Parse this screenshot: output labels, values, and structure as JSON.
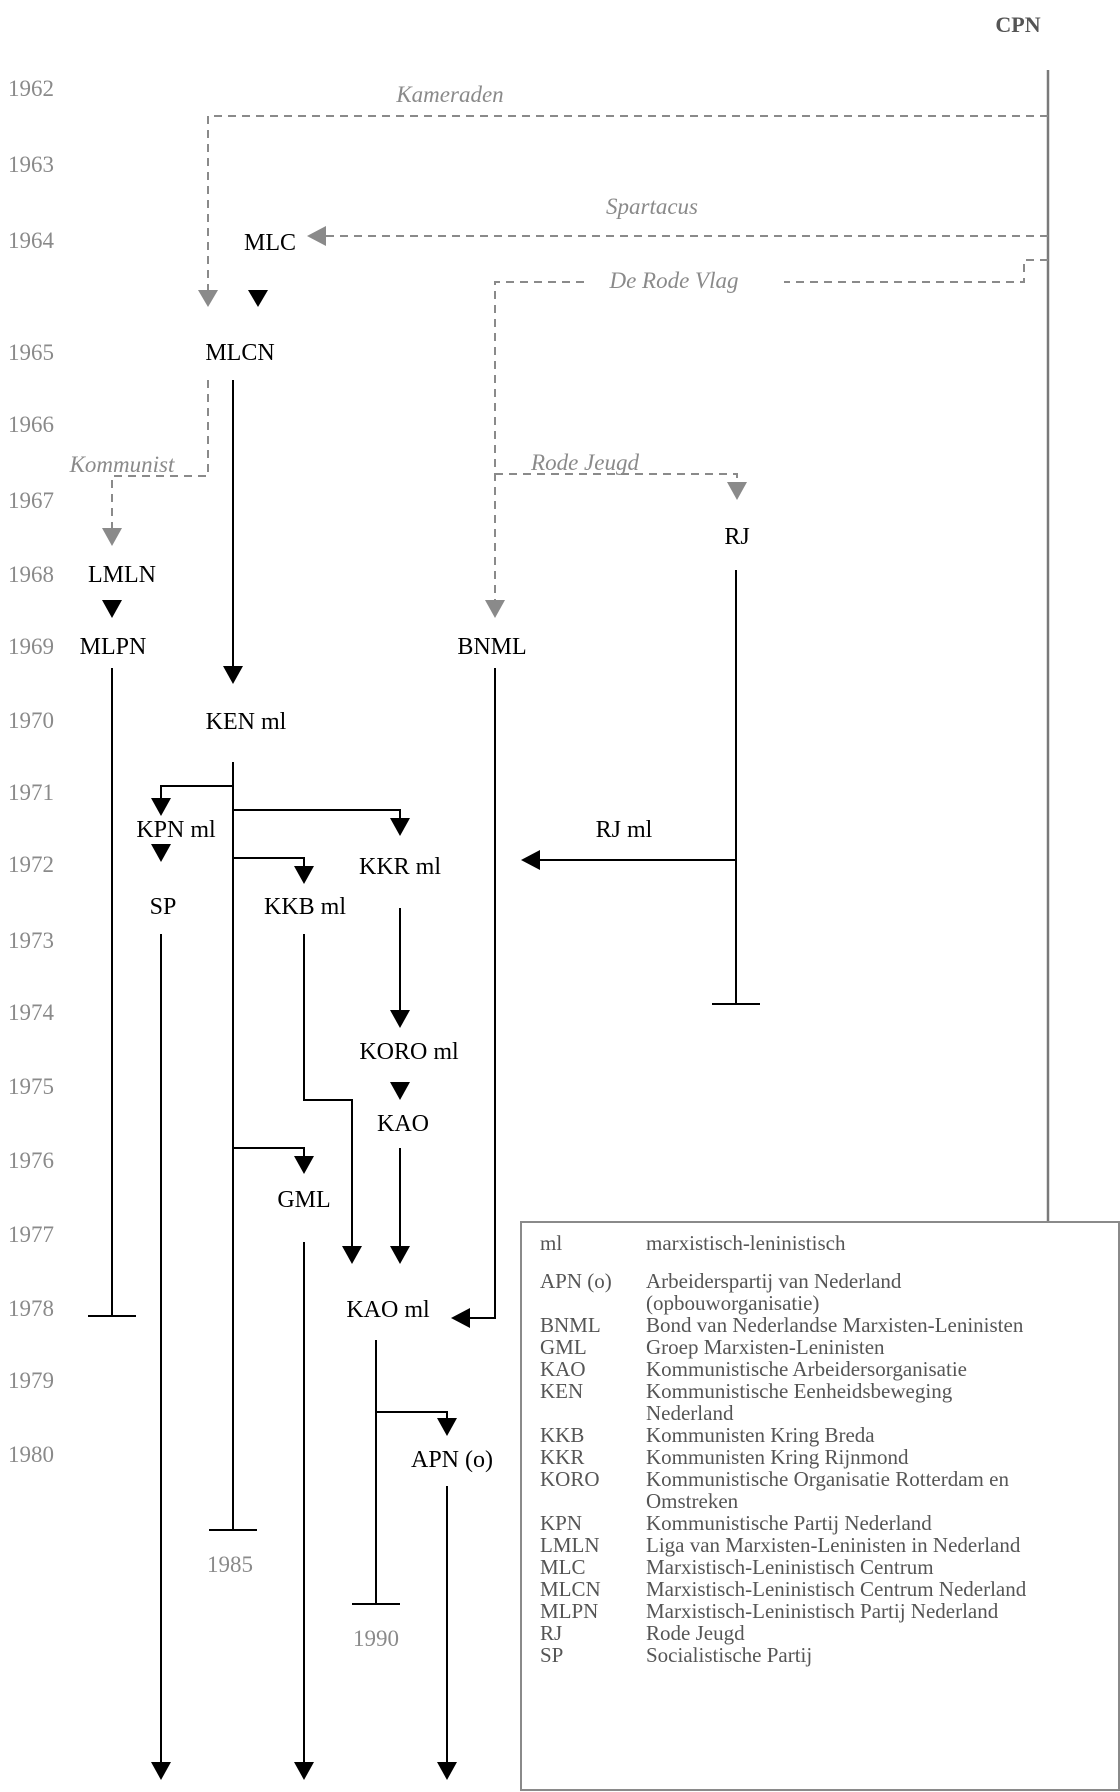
{
  "origin": "CPN",
  "years": [
    {
      "label": "1962"
    },
    {
      "label": "1963"
    },
    {
      "label": "1964"
    },
    {
      "label": "1965"
    },
    {
      "label": "1966"
    },
    {
      "label": "1967"
    },
    {
      "label": "1968"
    },
    {
      "label": "1969"
    },
    {
      "label": "1970"
    },
    {
      "label": "1971"
    },
    {
      "label": "1972"
    },
    {
      "label": "1973"
    },
    {
      "label": "1974"
    },
    {
      "label": "1975"
    },
    {
      "label": "1976"
    },
    {
      "label": "1977"
    },
    {
      "label": "1978"
    },
    {
      "label": "1979"
    },
    {
      "label": "1980"
    }
  ],
  "publications": {
    "kameraden": "Kameraden",
    "spartacus": "Spartacus",
    "rode_vlag": "De Rode Vlag",
    "kommunist": "Kommunist",
    "rode_jeugd": "Rode Jeugd"
  },
  "parties": {
    "mlc": "MLC",
    "mlcn": "MLCN",
    "lmln": "LMLN",
    "mlpn": "MLPN",
    "bnml": "BNML",
    "rj": "RJ",
    "ken_ml": "KEN ml",
    "kpn_ml": "KPN ml",
    "rj_ml": "RJ ml",
    "kkr_ml": "KKR ml",
    "sp": "SP",
    "kkb_ml": "KKB ml",
    "koro_ml": "KORO ml",
    "kao": "KAO",
    "gml": "GML",
    "kao_ml": "KAO ml",
    "apn_o": "APN (o)"
  },
  "end_years": {
    "ken": "1985",
    "kao_ml": "1990"
  },
  "legend": {
    "entries": [
      {
        "abbr": "ml",
        "lines": [
          "marxistisch-leninistisch"
        ]
      },
      {
        "abbr": "APN (o)",
        "lines": [
          "Arbeiderspartij van Nederland",
          "(opbouworganisatie)"
        ]
      },
      {
        "abbr": "BNML",
        "lines": [
          "Bond van Nederlandse Marxisten-Leninisten"
        ]
      },
      {
        "abbr": "GML",
        "lines": [
          "Groep Marxisten-Leninisten"
        ]
      },
      {
        "abbr": "KAO",
        "lines": [
          "Kommunistische Arbeidersorganisatie"
        ]
      },
      {
        "abbr": "KEN",
        "lines": [
          "Kommunistische Eenheidsbeweging",
          "Nederland"
        ]
      },
      {
        "abbr": "KKB",
        "lines": [
          "Kommunisten Kring Breda"
        ]
      },
      {
        "abbr": "KKR",
        "lines": [
          "Kommunisten Kring Rijnmond"
        ]
      },
      {
        "abbr": "KORO",
        "lines": [
          "Kommunistische Organisatie Rotterdam en",
          "Omstreken"
        ]
      },
      {
        "abbr": "KPN",
        "lines": [
          "Kommunistische Partij Nederland"
        ]
      },
      {
        "abbr": "LMLN",
        "lines": [
          "Liga van Marxisten-Leninisten in Nederland"
        ]
      },
      {
        "abbr": "MLC",
        "lines": [
          "Marxistisch-Leninistisch Centrum"
        ]
      },
      {
        "abbr": "MLCN",
        "lines": [
          "Marxistisch-Leninistisch Centrum Nederland"
        ]
      },
      {
        "abbr": "MLPN",
        "lines": [
          "Marxistisch-Leninistisch Partij Nederland"
        ]
      },
      {
        "abbr": "RJ",
        "lines": [
          "Rode Jeugd"
        ]
      },
      {
        "abbr": "SP",
        "lines": [
          "Socialistische Partij"
        ]
      }
    ]
  }
}
